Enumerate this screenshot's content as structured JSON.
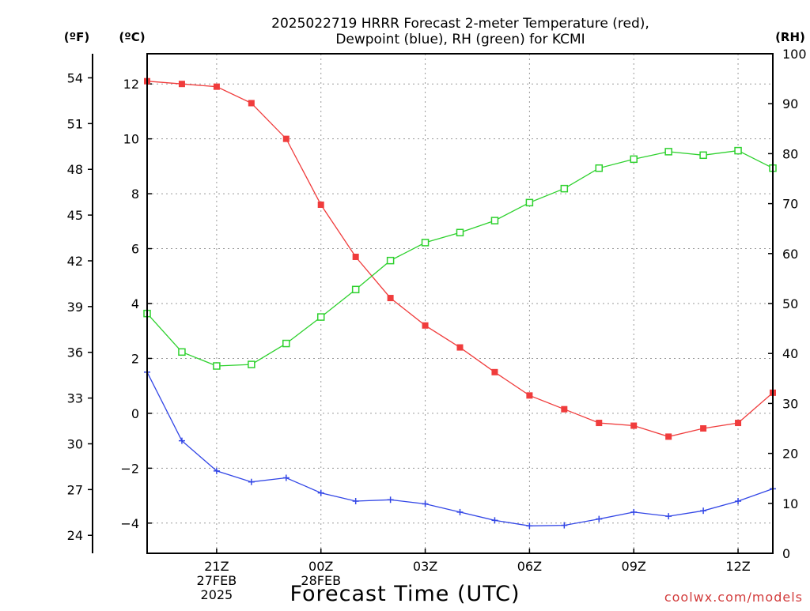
{
  "chart_data": {
    "type": "line",
    "title_lines": [
      "2025022719 HRRR Forecast 2-meter Temperature (red),",
      "Dewpoint (blue), RH (green) for KCMI"
    ],
    "xlabel": "Forecast Time (UTC)",
    "watermark": "coolwx.com/models",
    "units": {
      "fahrenheit": "(ºF)",
      "celsius": "(ºC)",
      "rh": "(RH)"
    },
    "x_ticks": [
      {
        "hour": 2,
        "lines": [
          "21Z",
          "27FEB",
          "2025"
        ]
      },
      {
        "hour": 5,
        "lines": [
          "00Z",
          "28FEB"
        ]
      },
      {
        "hour": 8,
        "lines": [
          "03Z"
        ]
      },
      {
        "hour": 11,
        "lines": [
          "06Z"
        ]
      },
      {
        "hour": 14,
        "lines": [
          "09Z"
        ]
      },
      {
        "hour": 17,
        "lines": [
          "12Z"
        ]
      }
    ],
    "x_range": [
      0,
      18
    ],
    "celsius_range": [
      -5.1,
      13.1
    ],
    "celsius_ticks": [
      "12",
      "10",
      "8",
      "6",
      "4",
      "2",
      "0",
      "−2",
      "−4"
    ],
    "fahrenheit_ticks": [
      "54",
      "51",
      "48",
      "45",
      "42",
      "39",
      "36",
      "33",
      "30",
      "27",
      "24"
    ],
    "rh_range": [
      0,
      100
    ],
    "rh_ticks": [
      "100",
      "90",
      "80",
      "70",
      "60",
      "50",
      "40",
      "30",
      "20",
      "10",
      "0"
    ],
    "series": [
      {
        "name": "Temperature",
        "axis": "celsius",
        "color": "#f03c3c",
        "marker": "filled-square",
        "x": [
          0,
          1,
          2,
          3,
          4,
          5,
          6,
          7,
          8,
          9,
          10,
          11,
          12,
          13,
          14,
          15,
          16,
          17,
          18
        ],
        "values": [
          12.1,
          12.0,
          11.9,
          11.3,
          10.0,
          7.6,
          5.7,
          4.2,
          3.2,
          2.4,
          1.5,
          0.65,
          0.15,
          -0.35,
          -0.45,
          -0.85,
          -0.55,
          -0.35,
          0.75
        ]
      },
      {
        "name": "Dewpoint",
        "axis": "celsius",
        "color": "#3246e6",
        "marker": "plus",
        "x": [
          0,
          1,
          2,
          3,
          4,
          5,
          6,
          7,
          8,
          9,
          10,
          11,
          12,
          13,
          14,
          15,
          16,
          17,
          18
        ],
        "values": [
          1.5,
          -1.0,
          -2.1,
          -2.5,
          -2.35,
          -2.9,
          -3.2,
          -3.15,
          -3.3,
          -3.6,
          -3.9,
          -4.1,
          -4.08,
          -3.85,
          -3.6,
          -3.75,
          -3.55,
          -3.2,
          -2.75
        ]
      },
      {
        "name": "RH",
        "axis": "rh",
        "color": "#2ed12e",
        "marker": "open-square",
        "x": [
          0,
          1,
          2,
          3,
          4,
          5,
          6,
          7,
          8,
          9,
          10,
          11,
          12,
          13,
          14,
          15,
          16,
          17,
          18
        ],
        "values": [
          48,
          40.3,
          37.5,
          37.8,
          42,
          47.3,
          52.8,
          58.6,
          62.2,
          64.2,
          66.6,
          70.2,
          73,
          77.1,
          78.9,
          80.4,
          79.7,
          80.6,
          77.1
        ]
      }
    ],
    "grid": true
  }
}
